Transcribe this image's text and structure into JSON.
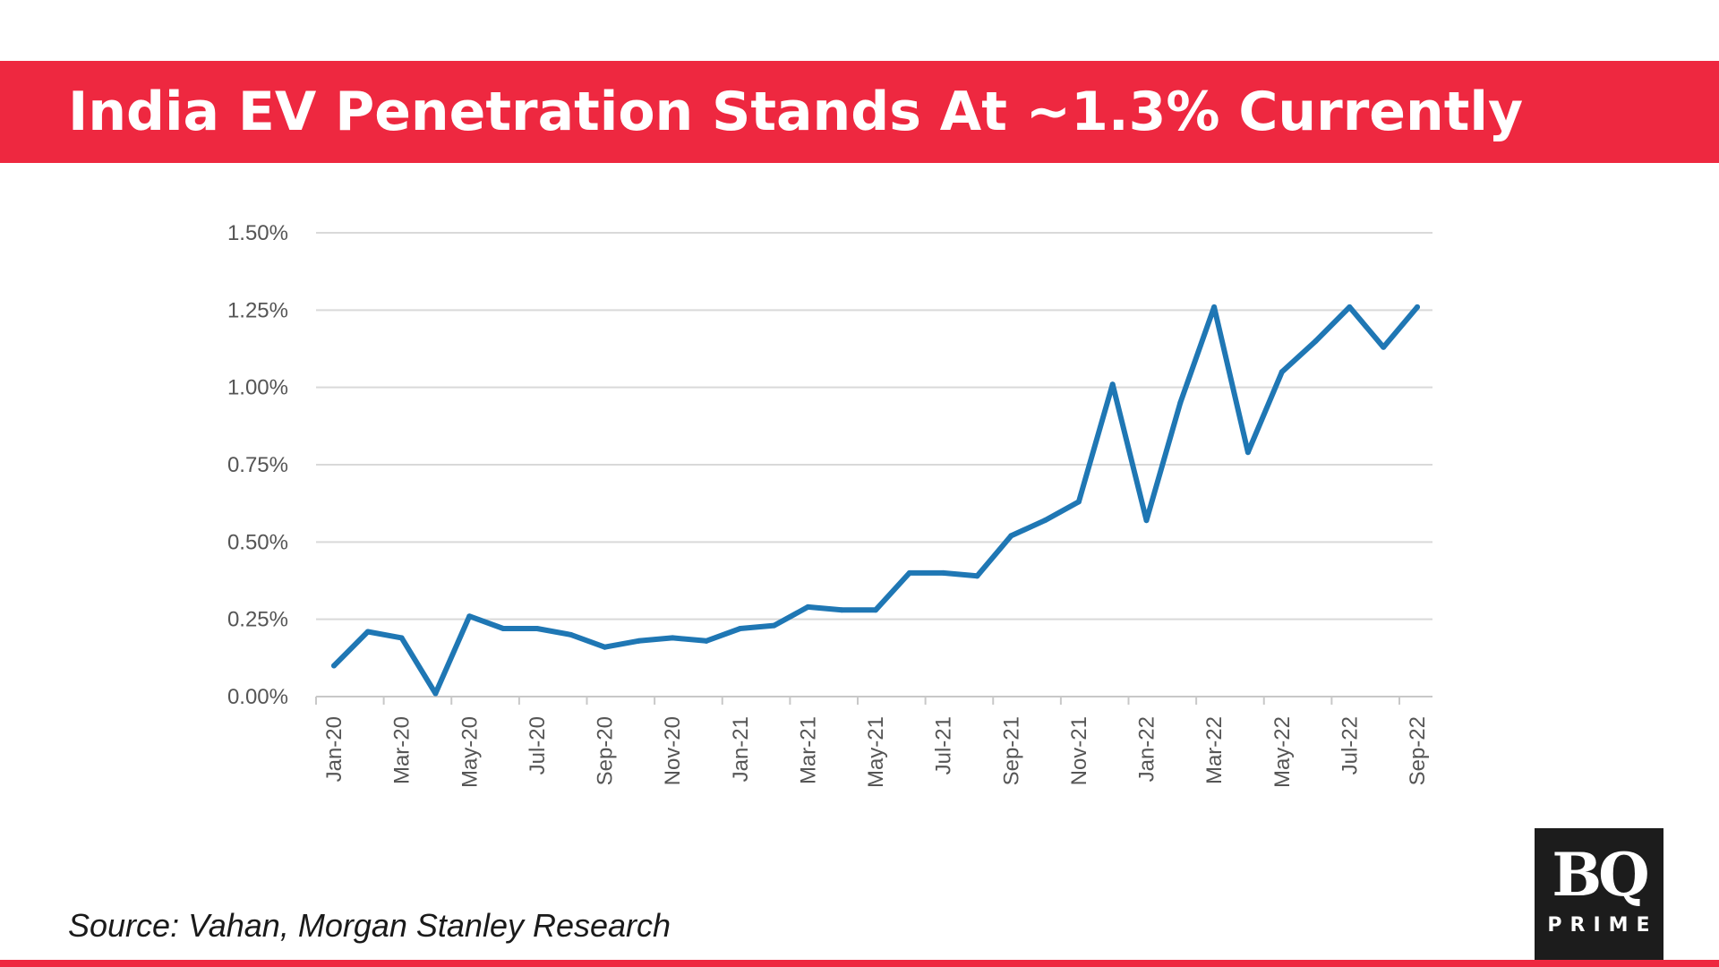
{
  "header": {
    "title": "India EV Penetration Stands At ~1.3% Currently"
  },
  "colors": {
    "accent": "#ee2840",
    "line": "#1f77b4",
    "grid": "#d9d9d9",
    "logo_bg": "#1c1c1c"
  },
  "chart_data": {
    "type": "line",
    "title": "",
    "xlabel": "",
    "ylabel": "",
    "ylim": [
      0,
      0.015
    ],
    "y_ticks": [
      0.0,
      0.0025,
      0.005,
      0.0075,
      0.01,
      0.0125,
      0.015
    ],
    "y_tick_labels": [
      "0.00%",
      "0.25%",
      "0.50%",
      "0.75%",
      "1.00%",
      "1.25%",
      "1.50%"
    ],
    "grid": true,
    "x_tick_labels": [
      "Jan-20",
      "Mar-20",
      "May-20",
      "Jul-20",
      "Sep-20",
      "Nov-20",
      "Jan-21",
      "Mar-21",
      "May-21",
      "Jul-21",
      "Sep-21",
      "Nov-21",
      "Jan-22",
      "Mar-22",
      "May-22",
      "Jul-22",
      "Sep-22"
    ],
    "x": [
      "Jan-20",
      "Feb-20",
      "Mar-20",
      "Apr-20",
      "May-20",
      "Jun-20",
      "Jul-20",
      "Aug-20",
      "Sep-20",
      "Oct-20",
      "Nov-20",
      "Dec-20",
      "Jan-21",
      "Feb-21",
      "Mar-21",
      "Apr-21",
      "May-21",
      "Jun-21",
      "Jul-21",
      "Aug-21",
      "Sep-21",
      "Oct-21",
      "Nov-21",
      "Dec-21",
      "Jan-22",
      "Feb-22",
      "Mar-22",
      "Apr-22",
      "May-22",
      "Jun-22",
      "Jul-22",
      "Aug-22",
      "Sep-22"
    ],
    "series": [
      {
        "name": "EV penetration",
        "values": [
          0.001,
          0.0021,
          0.0019,
          0.0001,
          0.0026,
          0.0022,
          0.0022,
          0.002,
          0.0016,
          0.0018,
          0.0019,
          0.0018,
          0.0022,
          0.0023,
          0.0029,
          0.0028,
          0.0028,
          0.004,
          0.004,
          0.0039,
          0.0052,
          0.0057,
          0.0063,
          0.0101,
          0.0057,
          0.0095,
          0.0126,
          0.0079,
          0.0105,
          0.0115,
          0.0126,
          0.0113,
          0.0126
        ]
      }
    ]
  },
  "footer": {
    "source": "Source: Vahan, Morgan Stanley Research"
  },
  "logo": {
    "mark": "BQ",
    "sub": "PRIME"
  }
}
